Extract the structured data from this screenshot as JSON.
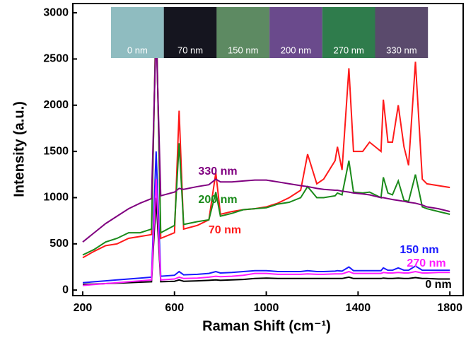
{
  "chart_data": {
    "type": "line",
    "xlabel": "Raman Shift (cm⁻¹)",
    "ylabel": "Intensity (a.u.)",
    "xlim": [
      157,
      1858
    ],
    "ylim": [
      -60,
      3100
    ],
    "xticks": [
      200,
      600,
      1000,
      1400,
      1800
    ],
    "yticks": [
      0,
      500,
      1000,
      1500,
      2000,
      2500,
      3000
    ],
    "grid": false,
    "insets": [
      {
        "label": "0 nm",
        "color": "#8fbcc0"
      },
      {
        "label": "70 nm",
        "color": "#15151f"
      },
      {
        "label": "150 nm",
        "color": "#5d8a62"
      },
      {
        "label": "200 nm",
        "color": "#6a4a8c"
      },
      {
        "label": "270 nm",
        "color": "#2f7c4c"
      },
      {
        "label": "330 nm",
        "color": "#5a4a6c"
      }
    ],
    "x": [
      200,
      250,
      300,
      350,
      400,
      450,
      500,
      520,
      540,
      600,
      620,
      640,
      700,
      750,
      780,
      800,
      850,
      900,
      950,
      1000,
      1050,
      1100,
      1150,
      1180,
      1220,
      1250,
      1300,
      1310,
      1330,
      1360,
      1380,
      1420,
      1450,
      1500,
      1510,
      1530,
      1550,
      1575,
      1600,
      1620,
      1650,
      1680,
      1700,
      1750,
      1800
    ],
    "series": [
      {
        "name": "0 nm",
        "color": "#000000",
        "values": [
          60,
          65,
          70,
          75,
          80,
          85,
          90,
          1000,
          90,
          95,
          110,
          95,
          100,
          105,
          110,
          105,
          110,
          115,
          125,
          130,
          125,
          125,
          125,
          125,
          125,
          125,
          125,
          125,
          125,
          140,
          125,
          125,
          125,
          125,
          130,
          125,
          125,
          130,
          125,
          125,
          135,
          125,
          125,
          120,
          120
        ]
      },
      {
        "name": "70 nm",
        "color": "#ff1a1a",
        "values": [
          350,
          420,
          480,
          500,
          560,
          580,
          600,
          3050,
          560,
          620,
          1940,
          660,
          700,
          760,
          1270,
          820,
          850,
          870,
          880,
          900,
          940,
          1000,
          1080,
          1470,
          1150,
          1200,
          1400,
          1550,
          1300,
          2400,
          1500,
          1500,
          1600,
          1500,
          2060,
          1600,
          1600,
          2000,
          1550,
          1350,
          2470,
          1200,
          1150,
          1130,
          1110
        ]
      },
      {
        "name": "150 nm",
        "color": "#1a1aff",
        "values": [
          80,
          90,
          100,
          110,
          120,
          130,
          140,
          1500,
          150,
          160,
          200,
          165,
          170,
          180,
          200,
          185,
          190,
          200,
          210,
          210,
          200,
          200,
          200,
          210,
          200,
          200,
          205,
          210,
          205,
          250,
          210,
          210,
          210,
          210,
          240,
          215,
          215,
          240,
          215,
          215,
          260,
          215,
          215,
          215,
          215
        ]
      },
      {
        "name": "200 nm",
        "color": "#1a8a1a",
        "values": [
          380,
          440,
          520,
          560,
          620,
          620,
          660,
          3000,
          620,
          700,
          1590,
          710,
          740,
          760,
          1060,
          800,
          830,
          870,
          880,
          890,
          930,
          950,
          1000,
          1120,
          1000,
          1000,
          1020,
          1050,
          1030,
          1400,
          1060,
          1050,
          1060,
          1000,
          1220,
          1050,
          1030,
          1180,
          970,
          960,
          1250,
          900,
          880,
          850,
          820
        ]
      },
      {
        "name": "270 nm",
        "color": "#ff1aff",
        "values": [
          50,
          60,
          70,
          80,
          90,
          100,
          110,
          1200,
          110,
          120,
          140,
          125,
          130,
          140,
          150,
          145,
          150,
          160,
          180,
          180,
          170,
          170,
          170,
          175,
          170,
          170,
          175,
          175,
          175,
          200,
          180,
          180,
          180,
          180,
          190,
          185,
          185,
          190,
          185,
          185,
          200,
          185,
          185,
          190,
          190
        ]
      },
      {
        "name": "330 nm",
        "color": "#800080",
        "values": [
          520,
          620,
          720,
          800,
          880,
          940,
          990,
          2800,
          1020,
          1060,
          1100,
          1090,
          1120,
          1140,
          1200,
          1170,
          1170,
          1180,
          1190,
          1190,
          1170,
          1150,
          1130,
          1120,
          1100,
          1090,
          1080,
          1080,
          1070,
          1060,
          1050,
          1040,
          1030,
          1000,
          1000,
          990,
          980,
          970,
          960,
          950,
          940,
          920,
          900,
          880,
          850
        ]
      }
    ]
  }
}
